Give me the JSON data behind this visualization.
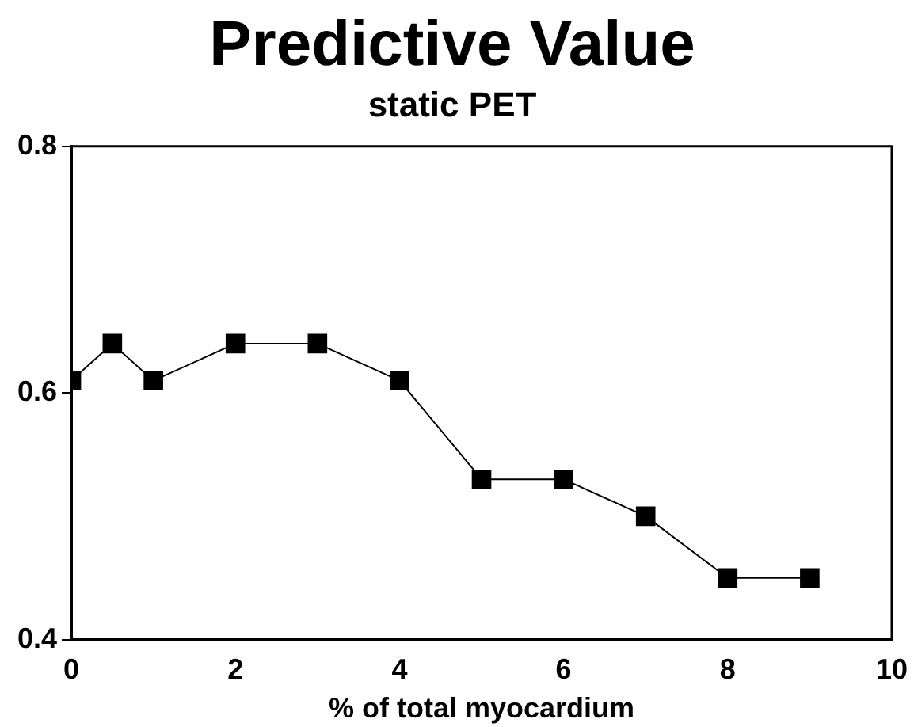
{
  "chart_data": {
    "type": "line",
    "title": "Predictive Value",
    "subtitle": "static PET",
    "xlabel": "% of total myocardium",
    "x": [
      0,
      0.5,
      1,
      2,
      3,
      4,
      5,
      6,
      7,
      8,
      9
    ],
    "series": [
      {
        "color": "#000000",
        "values": [
          0.61,
          0.64,
          0.61,
          0.64,
          0.64,
          0.61,
          0.53,
          0.53,
          0.5,
          0.45,
          0.45
        ]
      }
    ],
    "xlim": [
      0,
      10
    ],
    "xticks": [
      0,
      2,
      4,
      6,
      8,
      10
    ],
    "ylim": [
      0.4,
      0.8
    ],
    "yticks": [
      0.4,
      0.6,
      0.8
    ],
    "grid": false,
    "legend": false,
    "marker": "square",
    "line_style": "solid"
  }
}
